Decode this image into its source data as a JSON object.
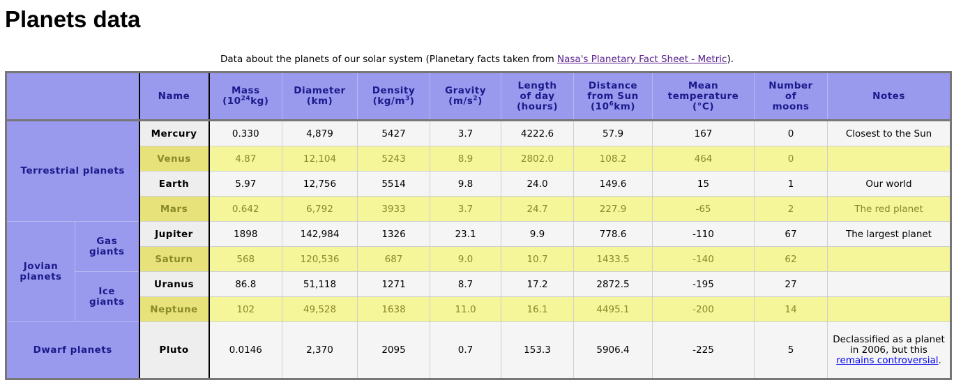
{
  "page": {
    "title": "Planets data",
    "caption_prefix": "Data about the planets of our solar system (Planetary facts taken from ",
    "caption_link": "Nasa's Planetary Fact Sheet - Metric",
    "caption_suffix": ")."
  },
  "table": {
    "headers": {
      "name": "Name",
      "mass": "Mass",
      "mass_unit_a": "(10",
      "mass_unit_sup": "24",
      "mass_unit_b": "kg)",
      "diameter": "Diameter",
      "diameter_unit": "(km)",
      "density": "Density",
      "density_unit_a": "(kg/m",
      "density_unit_sup": "3",
      "density_unit_b": ")",
      "gravity": "Gravity",
      "gravity_unit_a": "(m/s",
      "gravity_unit_sup": "2",
      "gravity_unit_b": ")",
      "length_1": "Length",
      "length_2": "of day",
      "length_3": "(hours)",
      "distance_1": "Distance",
      "distance_2": "from Sun",
      "distance_unit_a": "(10",
      "distance_unit_sup": "6",
      "distance_unit_b": "km)",
      "temp_1": "Mean",
      "temp_2": "temperature",
      "temp_3": "(°C)",
      "moons_1": "Number",
      "moons_2": "of",
      "moons_3": "moons",
      "notes": "Notes"
    },
    "groups": {
      "terrestrial": "Terrestrial planets",
      "jovian_1": "Jovian",
      "jovian_2": "planets",
      "gas_1": "Gas",
      "gas_2": "giants",
      "ice_1": "Ice",
      "ice_2": "giants",
      "dwarf": "Dwarf planets"
    },
    "rows": [
      {
        "name": "Mercury",
        "mass": "0.330",
        "diameter": "4,879",
        "density": "5427",
        "gravity": "3.7",
        "day": "4222.6",
        "distance": "57.9",
        "temp": "167",
        "moons": "0",
        "notes": "Closest to the Sun"
      },
      {
        "name": "Venus",
        "mass": "4.87",
        "diameter": "12,104",
        "density": "5243",
        "gravity": "8.9",
        "day": "2802.0",
        "distance": "108.2",
        "temp": "464",
        "moons": "0",
        "notes": ""
      },
      {
        "name": "Earth",
        "mass": "5.97",
        "diameter": "12,756",
        "density": "5514",
        "gravity": "9.8",
        "day": "24.0",
        "distance": "149.6",
        "temp": "15",
        "moons": "1",
        "notes": "Our world"
      },
      {
        "name": "Mars",
        "mass": "0.642",
        "diameter": "6,792",
        "density": "3933",
        "gravity": "3.7",
        "day": "24.7",
        "distance": "227.9",
        "temp": "-65",
        "moons": "2",
        "notes": "The red planet"
      },
      {
        "name": "Jupiter",
        "mass": "1898",
        "diameter": "142,984",
        "density": "1326",
        "gravity": "23.1",
        "day": "9.9",
        "distance": "778.6",
        "temp": "-110",
        "moons": "67",
        "notes": "The largest planet"
      },
      {
        "name": "Saturn",
        "mass": "568",
        "diameter": "120,536",
        "density": "687",
        "gravity": "9.0",
        "day": "10.7",
        "distance": "1433.5",
        "temp": "-140",
        "moons": "62",
        "notes": ""
      },
      {
        "name": "Uranus",
        "mass": "86.8",
        "diameter": "51,118",
        "density": "1271",
        "gravity": "8.7",
        "day": "17.2",
        "distance": "2872.5",
        "temp": "-195",
        "moons": "27",
        "notes": ""
      },
      {
        "name": "Neptune",
        "mass": "102",
        "diameter": "49,528",
        "density": "1638",
        "gravity": "11.0",
        "day": "16.1",
        "distance": "4495.1",
        "temp": "-200",
        "moons": "14",
        "notes": ""
      },
      {
        "name": "Pluto",
        "mass": "0.0146",
        "diameter": "2,370",
        "density": "2095",
        "gravity": "0.7",
        "day": "153.3",
        "distance": "5906.4",
        "temp": "-225",
        "moons": "5",
        "notes_prefix": "Declassified as a planet in 2006, but this ",
        "notes_link": "remains controversial",
        "notes_suffix": "."
      }
    ]
  }
}
